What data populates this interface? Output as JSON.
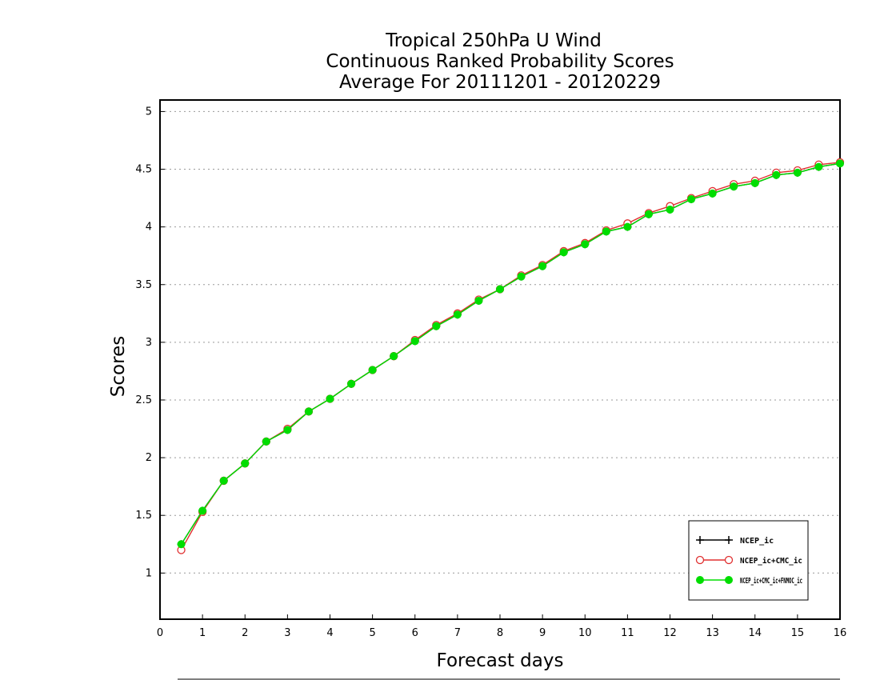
{
  "chart_data": {
    "type": "line",
    "title_lines": [
      "Tropical 250hPa U Wind",
      "Continuous Ranked Probability Scores",
      "Average For 20111201 - 20120229"
    ],
    "xlabel": "Forecast days",
    "ylabel": "Scores",
    "xlim": [
      0,
      16
    ],
    "ylim": [
      0.6,
      5.1
    ],
    "x_ticks": [
      0,
      1,
      2,
      3,
      4,
      5,
      6,
      7,
      8,
      9,
      10,
      11,
      12,
      13,
      14,
      15,
      16
    ],
    "y_ticks": [
      "1",
      "1.5",
      "2",
      "2.5",
      "3",
      "3.5",
      "4",
      "4.5",
      "5"
    ],
    "grid": "horizontal dotted",
    "legend_position": "bottom-right",
    "x": [
      0.5,
      1,
      1.5,
      2,
      2.5,
      3,
      3.5,
      4,
      4.5,
      5,
      5.5,
      6,
      6.5,
      7,
      7.5,
      8,
      8.5,
      9,
      9.5,
      10,
      10.5,
      11,
      11.5,
      12,
      12.5,
      13,
      13.5,
      14,
      14.5,
      15,
      15.5,
      16
    ],
    "series": [
      {
        "name": "NCEP_ic",
        "color": "#000000",
        "marker": "plus",
        "values": [
          1.25,
          1.54,
          1.8,
          1.95,
          2.14,
          2.24,
          2.4,
          2.51,
          2.64,
          2.76,
          2.88,
          3.01,
          3.14,
          3.24,
          3.36,
          3.46,
          3.57,
          3.66,
          3.78,
          3.85,
          3.96,
          4.0,
          4.11,
          4.15,
          4.24,
          4.29,
          4.35,
          4.38,
          4.45,
          4.47,
          4.52,
          4.55
        ]
      },
      {
        "name": "NCEP_ic+CMC_ic",
        "color": "#e03030",
        "marker": "open-circle",
        "values": [
          1.2,
          1.53,
          1.8,
          1.95,
          2.14,
          2.25,
          2.4,
          2.51,
          2.64,
          2.76,
          2.88,
          3.02,
          3.15,
          3.25,
          3.37,
          3.46,
          3.58,
          3.67,
          3.79,
          3.86,
          3.97,
          4.03,
          4.12,
          4.18,
          4.25,
          4.31,
          4.37,
          4.4,
          4.47,
          4.49,
          4.54,
          4.56
        ]
      },
      {
        "name": "NCEP_ic+CMC_ic+FNMOC_ic",
        "color": "#00dd00",
        "marker": "filled-circle",
        "values": [
          1.25,
          1.54,
          1.8,
          1.95,
          2.14,
          2.24,
          2.4,
          2.51,
          2.64,
          2.76,
          2.88,
          3.01,
          3.14,
          3.24,
          3.36,
          3.46,
          3.57,
          3.66,
          3.78,
          3.85,
          3.96,
          4.0,
          4.11,
          4.15,
          4.24,
          4.29,
          4.35,
          4.38,
          4.45,
          4.47,
          4.52,
          4.55
        ]
      }
    ]
  }
}
